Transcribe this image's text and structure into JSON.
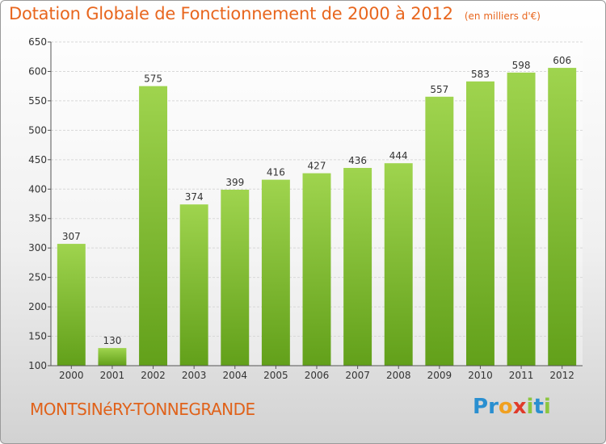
{
  "header": {
    "title": "Dotation Globale de Fonctionnement de 2000 à 2012",
    "unit": "(en milliers d'€)"
  },
  "footer": {
    "commune": "MONTSINéRY-TONNEGRANDE"
  },
  "logo": {
    "text": "Proxiti",
    "letters": [
      {
        "char": "P",
        "color": "#2a8fd0"
      },
      {
        "char": "r",
        "color": "#2a8fd0"
      },
      {
        "char": "o",
        "color": "#f0a020"
      },
      {
        "char": "x",
        "color": "#e03a2a"
      },
      {
        "char": "i",
        "color": "#8cc63f"
      },
      {
        "char": "t",
        "color": "#2a8fd0"
      },
      {
        "char": "i",
        "color": "#8cc63f"
      }
    ]
  },
  "chart_data": {
    "type": "bar",
    "categories": [
      "2000",
      "2001",
      "2002",
      "2003",
      "2004",
      "2005",
      "2006",
      "2007",
      "2008",
      "2009",
      "2010",
      "2011",
      "2012"
    ],
    "values": [
      307,
      130,
      575,
      374,
      399,
      416,
      427,
      436,
      444,
      557,
      583,
      598,
      606
    ],
    "ylim": [
      100,
      650
    ],
    "yticks": [
      100,
      150,
      200,
      250,
      300,
      350,
      400,
      450,
      500,
      550,
      600,
      650
    ],
    "grid": true,
    "colors": {
      "bar_top": "#9fd44e",
      "bar_bottom": "#62a01a",
      "title": "#e8661e",
      "grid": "#d8d8d8"
    }
  }
}
